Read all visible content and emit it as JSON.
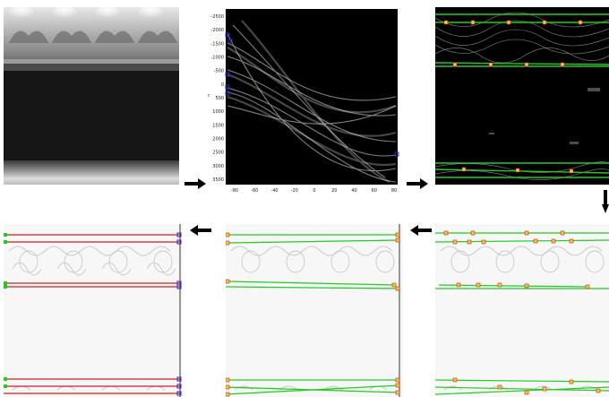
{
  "hough": {
    "y_ticks": [
      "-2500",
      "-2000",
      "-1500",
      "-1000",
      "-500",
      "0",
      "500",
      "1000",
      "1500",
      "2000",
      "2500",
      "3000",
      "3500"
    ],
    "x_ticks": [
      "-80",
      "-60",
      "-40",
      "-20",
      "0",
      "20",
      "40",
      "60",
      "80"
    ],
    "ylabel": "r"
  },
  "colors": {
    "red_line": "#d02020",
    "green_line": "#22cc22",
    "blue_marker": "#2a2ad0",
    "yellow_marker": "#e8d040",
    "arrow": "#000000"
  },
  "arrows": [
    "right",
    "right",
    "down",
    "left",
    "left"
  ]
}
